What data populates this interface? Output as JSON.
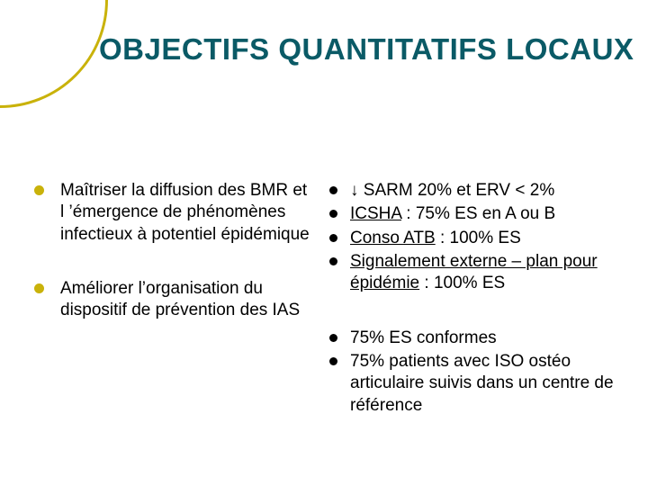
{
  "colors": {
    "accent": "#c9b20a",
    "title": "#0a5a66",
    "bullet_inner": "#000000",
    "text": "#000000",
    "background": "#ffffff"
  },
  "title": "OBJECTIFS QUANTITATIFS LOCAUX",
  "left": {
    "block1": "Maîtriser la diffusion des BMR et l ’émergence de phénomènes infectieux à potentiel épidémique",
    "block2": "Améliorer l’organisation du dispositif de prévention des IAS"
  },
  "right": {
    "block1": {
      "item1_prefix": "↓ ",
      "item1_rest": "SARM 20% et ERV < 2%",
      "item2_u": "ICSHA",
      "item2_rest": " : 75% ES en A ou B",
      "item3_u": "Conso ATB",
      "item3_rest": " : 100% ES",
      "item4_u": "Signalement externe – plan pour épidémie",
      "item4_rest": " : 100% ES"
    },
    "block2": {
      "item1": "75% ES conformes",
      "item2": "75% patients avec ISO ostéo articulaire suivis dans un centre de référence"
    }
  }
}
